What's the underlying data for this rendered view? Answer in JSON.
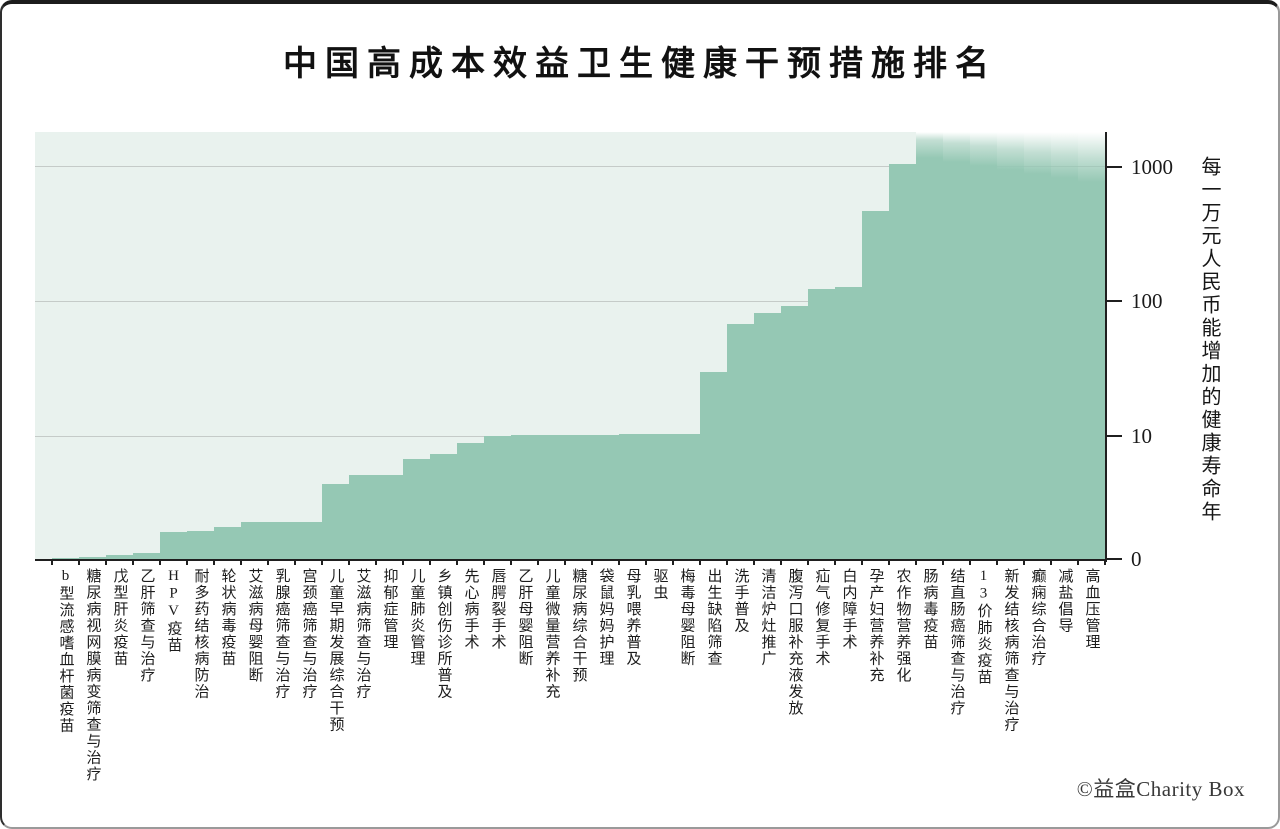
{
  "title": "中国高成本效益卫生健康干预措施排名",
  "y_axis": {
    "label": "每一万元人民币能增加的健康寿命年",
    "ticks": [
      {
        "label": "1000",
        "value": 1000
      },
      {
        "label": "100",
        "value": 100
      },
      {
        "label": "10",
        "value": 10
      },
      {
        "label": "0",
        "value": 0
      }
    ]
  },
  "footer": {
    "credit": "©益盒Charity Box"
  },
  "colors": {
    "bar": "#95c8b4",
    "plot_background": "#e9f2ee",
    "gridline": "#c5cbc8",
    "axis": "#1f1f1f"
  },
  "chart_data": {
    "type": "bar",
    "title": "中国高成本效益卫生健康干预措施排名",
    "xlabel": "",
    "ylabel": "每一万元人民币能增加的健康寿命年",
    "yscale": "symlog (linear 0-10, log above 10)",
    "ylim": [
      0,
      1800
    ],
    "grid": true,
    "gridline_values": [
      10,
      100,
      1000
    ],
    "legend": false,
    "categories": [
      "b型流感嗜血杆菌疫苗",
      "糖尿病视网膜病变筛查与治疗",
      "戊型肝炎疫苗",
      "乙肝筛查与治疗",
      "HPV疫苗",
      "耐多药结核病防治",
      "轮状病毒疫苗",
      "艾滋病母婴阻断",
      "乳腺癌筛查与治疗",
      "宫颈癌筛查与治疗",
      "儿童早期发展综合干预",
      "艾滋病筛查与治疗",
      "抑郁症管理",
      "儿童肺炎管理",
      "乡镇创伤诊所普及",
      "先心病手术",
      "唇腭裂手术",
      "乙肝母婴阻断",
      "儿童微量营养补充",
      "糖尿病综合干预",
      "袋鼠妈妈护理",
      "母乳喂养普及",
      "驱虫",
      "梅毒母婴阻断",
      "出生缺陷筛查",
      "洗手普及",
      "清洁炉灶推广",
      "腹泻口服补充液发放",
      "疝气修复手术",
      "白内障手术",
      "孕产妇营养补充",
      "农作物营养强化",
      "肠病毒疫苗",
      "结直肠癌筛查与治疗",
      "13价肺炎疫苗",
      "新发结核病筛查与治疗",
      "癫痫综合治疗",
      "减盐倡导",
      "高血压管理"
    ],
    "values": [
      0.1,
      0.2,
      0.35,
      0.45,
      2.2,
      2.3,
      2.6,
      3,
      3,
      3,
      6.1,
      6.8,
      6.8,
      8.1,
      8.5,
      9.4,
      10,
      10.1,
      10.1,
      10.2,
      10.2,
      10.3,
      10.3,
      10.4,
      30,
      68,
      82,
      93,
      124,
      129,
      470,
      1050,
      null,
      null,
      null,
      null,
      null,
      null,
      null
    ],
    "offscale": [
      false,
      false,
      false,
      false,
      false,
      false,
      false,
      false,
      false,
      false,
      false,
      false,
      false,
      false,
      false,
      false,
      false,
      false,
      false,
      false,
      false,
      false,
      false,
      false,
      false,
      false,
      false,
      false,
      false,
      false,
      false,
      false,
      true,
      true,
      true,
      true,
      true,
      true,
      true
    ],
    "offscale_note": "最右7项柱体超出坐标轴顶端并向上渐隐(值大于1000)"
  }
}
